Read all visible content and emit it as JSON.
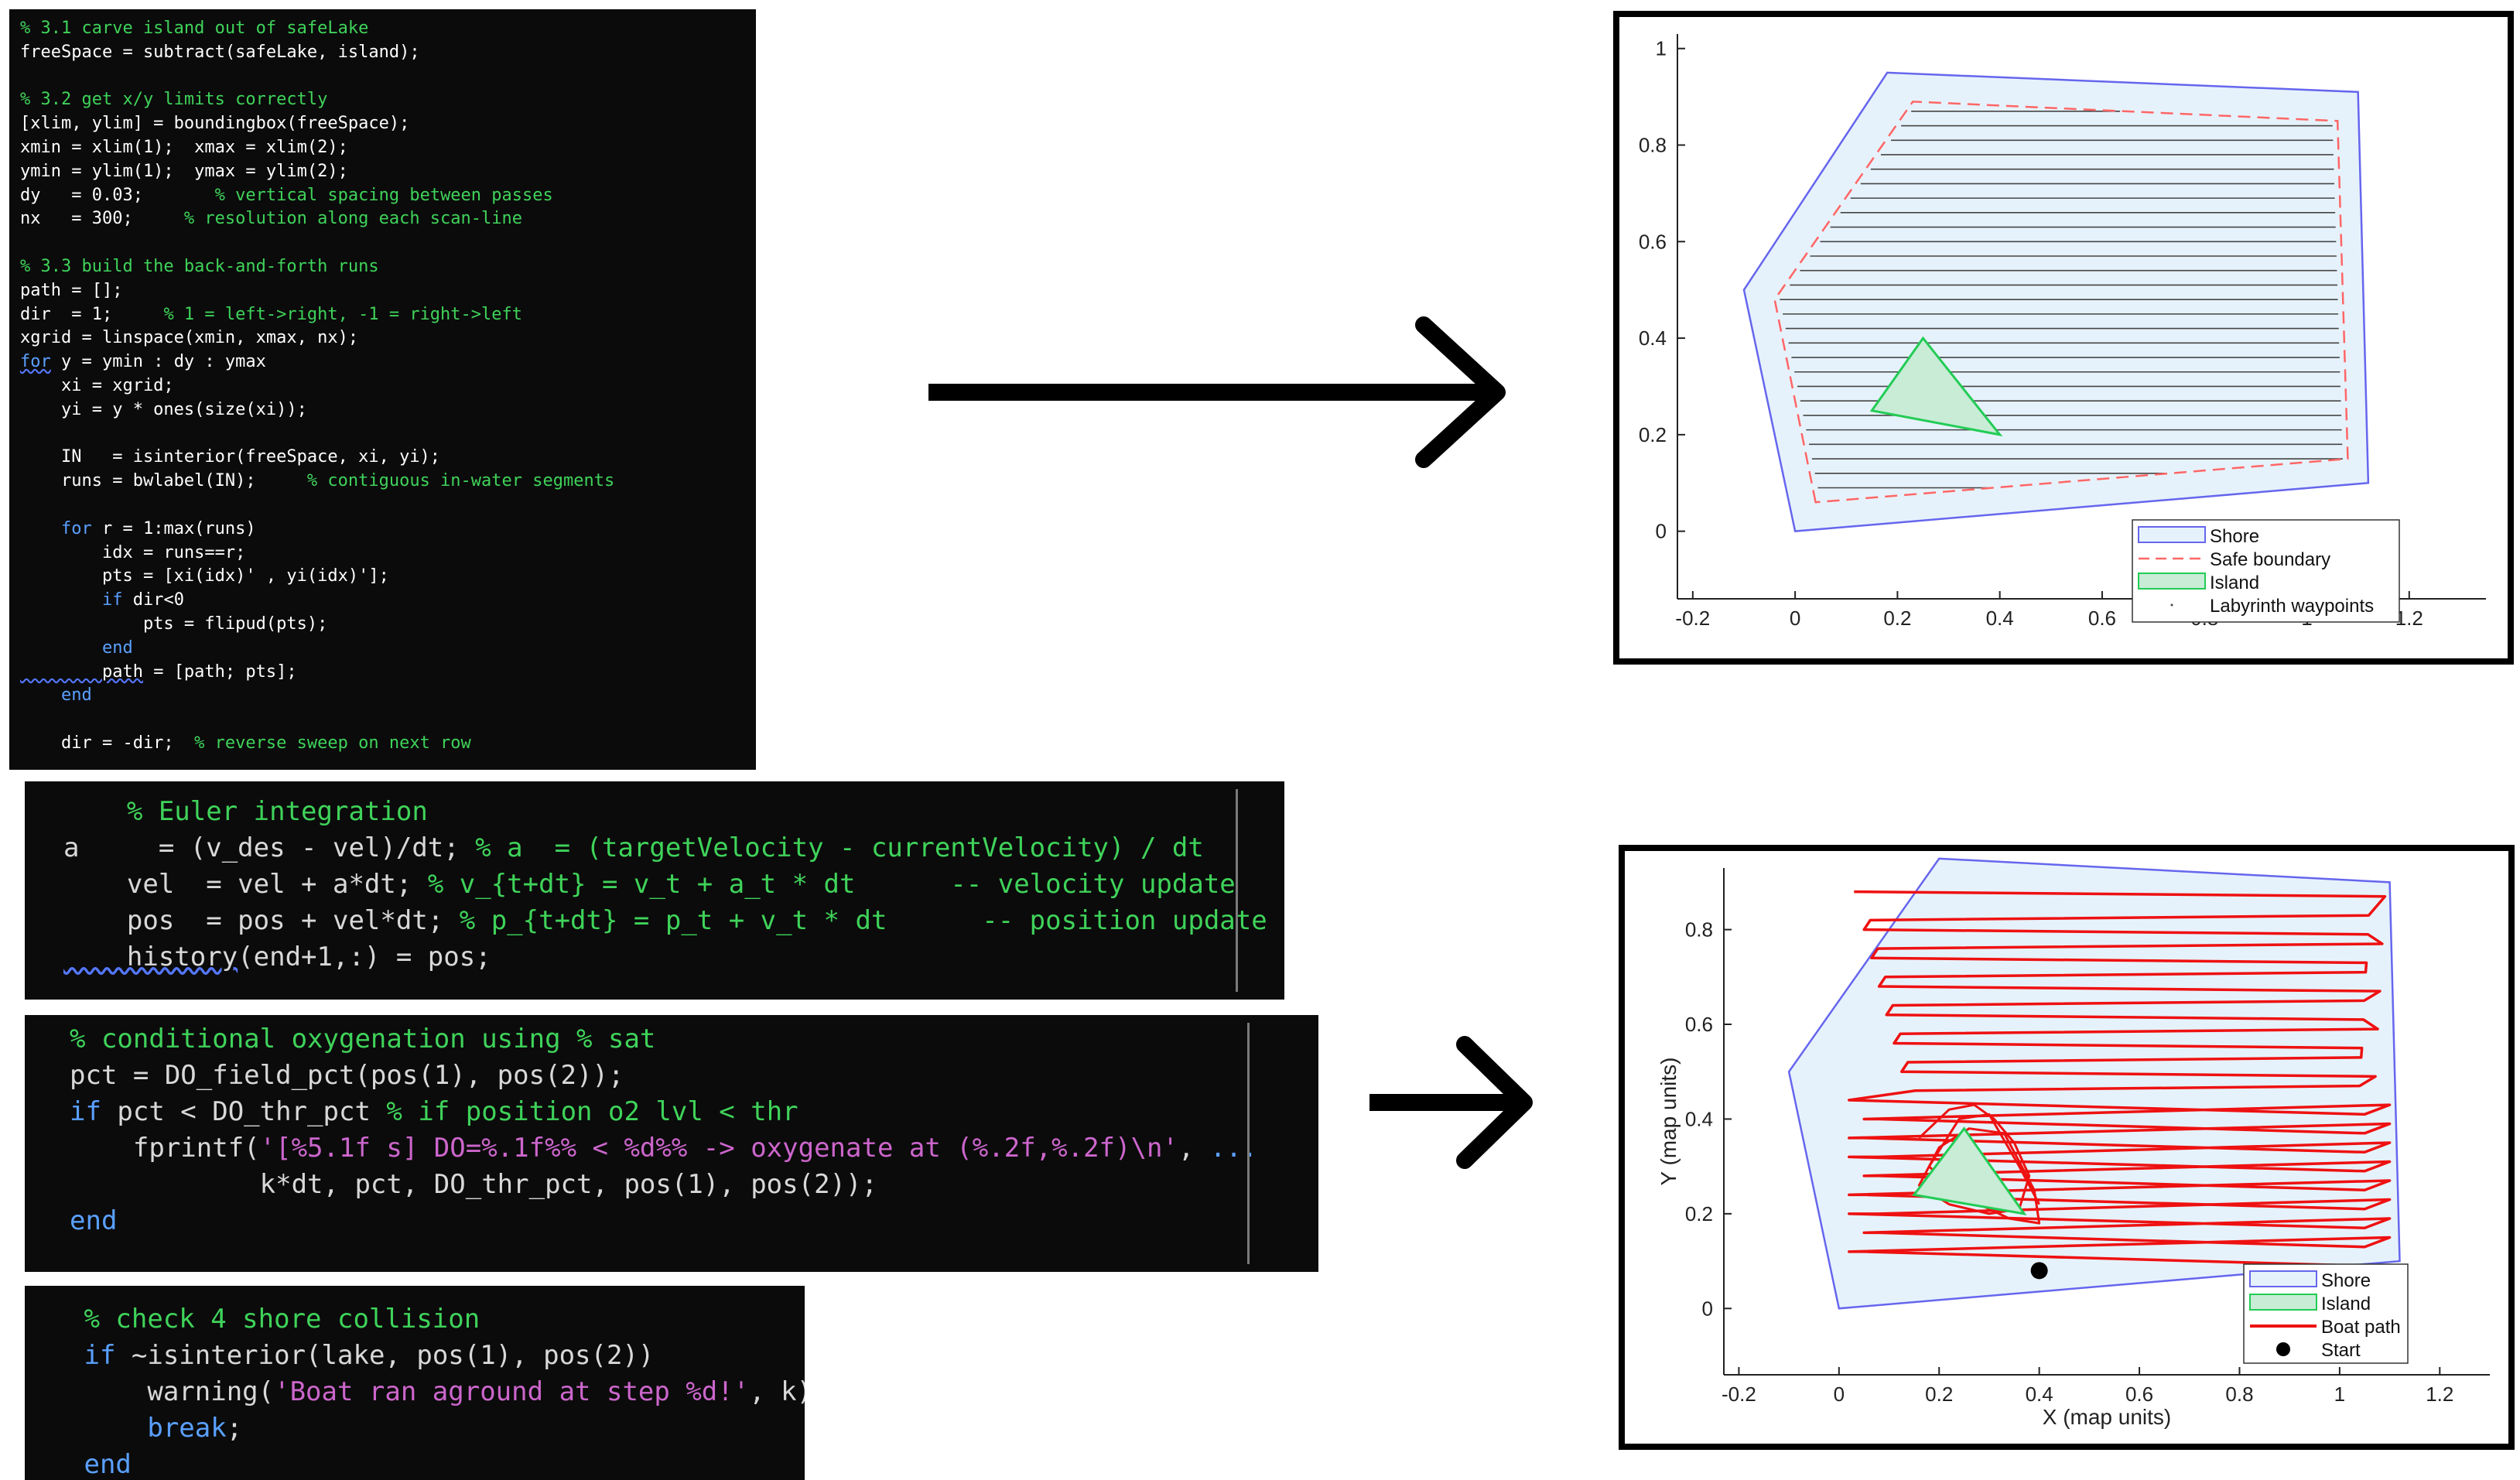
{
  "panels": {
    "labyrinth_code": [
      [
        {
          "c": "c-cm",
          "t": "% 3.1 carve island out of safeLake"
        }
      ],
      [
        {
          "c": "c-tx",
          "t": "freeSpace = subtract(safeLake, island);"
        }
      ],
      [
        {
          "c": "c-tx",
          "t": ""
        }
      ],
      [
        {
          "c": "c-cm",
          "t": "% 3.2 get x/y limits correctly"
        }
      ],
      [
        {
          "c": "c-tx",
          "t": "[xlim, ylim] = boundingbox(freeSpace);"
        }
      ],
      [
        {
          "c": "c-tx",
          "t": "xmin = xlim(1);  xmax = xlim(2);"
        }
      ],
      [
        {
          "c": "c-tx",
          "t": "ymin = ylim(1);  ymax = ylim(2);"
        }
      ],
      [
        {
          "c": "c-tx",
          "t": "dy   = 0.03;       "
        },
        {
          "c": "c-cm",
          "t": "% vertical spacing between passes"
        }
      ],
      [
        {
          "c": "c-tx",
          "t": "nx   = 300;     "
        },
        {
          "c": "c-cm",
          "t": "% resolution along each scan-line"
        }
      ],
      [
        {
          "c": "c-tx",
          "t": ""
        }
      ],
      [
        {
          "c": "c-cm",
          "t": "% 3.3 build the back-and-forth runs"
        }
      ],
      [
        {
          "c": "c-tx",
          "t": "path = [];"
        }
      ],
      [
        {
          "c": "c-tx",
          "t": "dir  = 1;     "
        },
        {
          "c": "c-cm",
          "t": "% 1 = left->right, -1 = right->left"
        }
      ],
      [
        {
          "c": "c-tx",
          "t": "xgrid = linspace(xmin, xmax, nx);"
        }
      ],
      [
        {
          "c": "c-kw u",
          "t": "for"
        },
        {
          "c": "c-tx",
          "t": " y = ymin : dy : ymax"
        }
      ],
      [
        {
          "c": "c-tx",
          "t": "    xi = xgrid;"
        }
      ],
      [
        {
          "c": "c-tx",
          "t": "    yi = y * ones(size(xi));"
        }
      ],
      [
        {
          "c": "c-tx",
          "t": ""
        }
      ],
      [
        {
          "c": "c-tx",
          "t": "    IN   = isinterior(freeSpace, xi, yi);"
        }
      ],
      [
        {
          "c": "c-tx",
          "t": "    runs = bwlabel(IN);     "
        },
        {
          "c": "c-cm",
          "t": "% contiguous in-water segments"
        }
      ],
      [
        {
          "c": "c-tx",
          "t": ""
        }
      ],
      [
        {
          "c": "c-tx",
          "t": "    "
        },
        {
          "c": "c-kw",
          "t": "for"
        },
        {
          "c": "c-tx",
          "t": " r = 1:max(runs)"
        }
      ],
      [
        {
          "c": "c-tx",
          "t": "        idx = runs==r;"
        }
      ],
      [
        {
          "c": "c-tx",
          "t": "        pts = [xi(idx)' , yi(idx)'];"
        }
      ],
      [
        {
          "c": "c-tx",
          "t": "        "
        },
        {
          "c": "c-kw",
          "t": "if"
        },
        {
          "c": "c-tx",
          "t": " dir<0"
        }
      ],
      [
        {
          "c": "c-tx",
          "t": "            pts = flipud(pts);"
        }
      ],
      [
        {
          "c": "c-tx",
          "t": "        "
        },
        {
          "c": "c-kw",
          "t": "end"
        }
      ],
      [
        {
          "c": "c-tx u",
          "t": "        path"
        },
        {
          "c": "c-tx",
          "t": " = [path; pts];"
        }
      ],
      [
        {
          "c": "c-tx",
          "t": "    "
        },
        {
          "c": "c-kw",
          "t": "end"
        }
      ],
      [
        {
          "c": "c-tx",
          "t": ""
        }
      ],
      [
        {
          "c": "c-tx",
          "t": "    dir = -dir;  "
        },
        {
          "c": "c-cm",
          "t": "% reverse sweep on next row"
        }
      ]
    ],
    "euler_code": [
      [
        {
          "c": "c-cm",
          "t": "    % Euler integration"
        }
      ],
      [
        {
          "c": "c-tx",
          "t": "a     = (v_des - vel)/dt; "
        },
        {
          "c": "c-cm",
          "t": "% a  = (targetVelocity - currentVelocity) / dt"
        }
      ],
      [
        {
          "c": "c-tx",
          "t": "    vel  = vel + a*dt; "
        },
        {
          "c": "c-cm",
          "t": "% v_{t+dt} = v_t + a_t * dt      -- velocity update"
        }
      ],
      [
        {
          "c": "c-tx",
          "t": "    pos  = pos + vel*dt; "
        },
        {
          "c": "c-cm",
          "t": "% p_{t+dt} = p_t + v_t * dt      -- position update"
        }
      ],
      [
        {
          "c": "c-tx u",
          "t": "    history"
        },
        {
          "c": "c-tx",
          "t": "(end+1,:) = pos;"
        }
      ]
    ],
    "oxygen_code": [
      [
        {
          "c": "c-cm",
          "t": "% conditional oxygenation using % sat"
        }
      ],
      [
        {
          "c": "c-tx",
          "t": "pct = DO_field_pct(pos(1), pos(2));"
        }
      ],
      [
        {
          "c": "c-kw",
          "t": "if"
        },
        {
          "c": "c-tx",
          "t": " pct < DO_thr_pct "
        },
        {
          "c": "c-cm",
          "t": "% if position o2 lvl < thr"
        }
      ],
      [
        {
          "c": "c-tx",
          "t": "    fprintf("
        },
        {
          "c": "c-st",
          "t": "'[%5.1f s] DO=%.1f%% < %d%% -> oxygenate at (%.2f,%.2f)\\n'"
        },
        {
          "c": "c-tx",
          "t": ", "
        },
        {
          "c": "c-dots",
          "t": "..."
        }
      ],
      [
        {
          "c": "c-tx",
          "t": "            k*dt, pct, DO_thr_pct, pos(1), pos(2));"
        }
      ],
      [
        {
          "c": "c-kw",
          "t": "end"
        }
      ]
    ],
    "collision_code": [
      [
        {
          "c": "c-cm",
          "t": " % check 4 shore collision"
        }
      ],
      [
        {
          "c": "c-kw",
          "t": " if"
        },
        {
          "c": "c-tx",
          "t": " ~isinterior(lake, pos(1), pos(2))"
        }
      ],
      [
        {
          "c": "c-tx",
          "t": "     warning("
        },
        {
          "c": "c-st",
          "t": "'Boat ran aground at step %d!'"
        },
        {
          "c": "c-tx",
          "t": ", k);"
        }
      ],
      [
        {
          "c": "c-kw",
          "t": "     break"
        },
        {
          "c": "c-tx",
          "t": ";"
        }
      ],
      [
        {
          "c": "c-kw",
          "t": " end"
        }
      ]
    ]
  },
  "top_plot": {
    "legend": [
      "Shore",
      "Safe boundary",
      "Island",
      "Labyrinth waypoints"
    ],
    "xticks": [
      "-0.2",
      "0",
      "0.2",
      "0.4",
      "0.6",
      "0.8",
      "1",
      "1.2"
    ],
    "yticks": [
      "0",
      "0.2",
      "0.4",
      "0.6",
      "0.8",
      "1"
    ]
  },
  "bottom_plot": {
    "legend": [
      "Shore",
      "Island",
      "Boat path",
      "Start"
    ],
    "xticks": [
      "-0.2",
      "0",
      "0.2",
      "0.4",
      "0.6",
      "0.8",
      "1",
      "1.2"
    ],
    "yticks": [
      "0",
      "0.2",
      "0.4",
      "0.6",
      "0.8"
    ],
    "xlabel": "X (map units)",
    "ylabel": "Y (map units)"
  },
  "chart_data": [
    {
      "type": "line",
      "xlim": [
        -0.23,
        1.35
      ],
      "ylim": [
        -0.14,
        1.03
      ],
      "grid": false,
      "legend_position": "bottom-right",
      "series": [
        {
          "name": "Shore",
          "kind": "polygon",
          "color": "#6666ee",
          "fill": "#e6f2fb",
          "x": [
            0,
            -0.1,
            0.18,
            1.1,
            1.12
          ],
          "y": [
            0,
            0.5,
            0.95,
            0.91,
            0.1
          ]
        },
        {
          "name": "Safe boundary",
          "kind": "dashed-polygon",
          "color": "#ff6666",
          "x": [
            0.04,
            -0.04,
            0.23,
            1.06,
            1.08
          ],
          "y": [
            0.06,
            0.48,
            0.89,
            0.85,
            0.15
          ]
        },
        {
          "name": "Island",
          "kind": "polygon",
          "color": "#22cc55",
          "fill": "#c8ecd6",
          "x": [
            0.15,
            0.25,
            0.4
          ],
          "y": [
            0.25,
            0.4,
            0.2
          ]
        },
        {
          "name": "Labyrinth waypoints",
          "kind": "scanlines",
          "color": "#444444",
          "y_start": 0.09,
          "y_end": 0.87,
          "dy": 0.03
        }
      ]
    },
    {
      "type": "line",
      "xlim": [
        -0.23,
        1.3
      ],
      "ylim": [
        -0.14,
        0.93
      ],
      "xlabel": "X (map units)",
      "ylabel": "Y (map units)",
      "grid": false,
      "legend_position": "bottom-right",
      "series": [
        {
          "name": "Shore",
          "kind": "polygon",
          "color": "#6666ee",
          "fill": "#e6f2fb",
          "x": [
            0,
            -0.1,
            0.2,
            1.1,
            1.12
          ],
          "y": [
            0,
            0.5,
            0.95,
            0.9,
            0.1
          ]
        },
        {
          "name": "Island",
          "kind": "polygon",
          "color": "#22cc55",
          "fill": "#c8ecd6",
          "x": [
            0.15,
            0.25,
            0.37
          ],
          "y": [
            0.24,
            0.38,
            0.2
          ]
        },
        {
          "name": "Boat path",
          "kind": "zigzag",
          "color": "#ee1111"
        },
        {
          "name": "Start",
          "kind": "point",
          "color": "#000000",
          "x": [
            0.4
          ],
          "y": [
            0.08
          ]
        }
      ]
    }
  ]
}
